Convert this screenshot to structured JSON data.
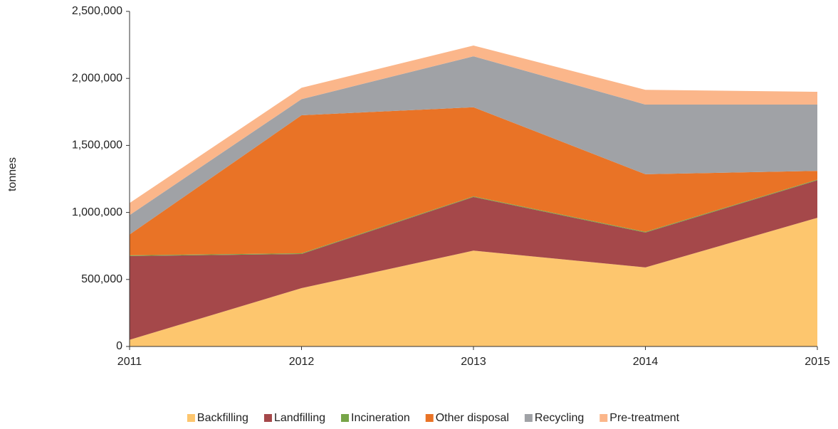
{
  "chart_data": {
    "type": "stacked-area",
    "y_label": "tonnes",
    "categories": [
      "2011",
      "2012",
      "2013",
      "2014",
      "2015"
    ],
    "series": [
      {
        "name": "Backfilling",
        "color": "#fdc66e",
        "values": [
          50000,
          435000,
          715000,
          590000,
          960000
        ]
      },
      {
        "name": "Landfilling",
        "color": "#a5484a",
        "values": [
          625000,
          255000,
          400000,
          260000,
          280000
        ]
      },
      {
        "name": "Incineration",
        "color": "#77a548",
        "values": [
          5000,
          5000,
          5000,
          5000,
          5000
        ]
      },
      {
        "name": "Other disposal",
        "color": "#e97326",
        "values": [
          155000,
          1030000,
          665000,
          430000,
          65000
        ]
      },
      {
        "name": "Recycling",
        "color": "#a0a2a6",
        "values": [
          145000,
          120000,
          380000,
          520000,
          495000
        ]
      },
      {
        "name": "Pre-treatment",
        "color": "#fbb68a",
        "values": [
          90000,
          85000,
          80000,
          110000,
          95000
        ]
      }
    ],
    "ylim": [
      0,
      2500000
    ],
    "yticks": [
      0,
      {
        "value": 500000,
        "label": "500,000"
      },
      {
        "value": 1000000,
        "label": "1,000,000"
      },
      {
        "value": 1500000,
        "label": "1,500,000"
      },
      {
        "value": 2000000,
        "label": "2,000,000"
      },
      {
        "value": 2500000,
        "label": "2,500,000"
      }
    ],
    "legend": "bottom"
  }
}
